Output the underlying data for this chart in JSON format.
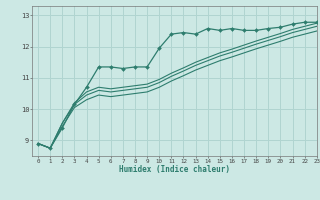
{
  "title": "",
  "xlabel": "Humidex (Indice chaleur)",
  "xlim": [
    -0.5,
    23
  ],
  "ylim": [
    8.5,
    13.3
  ],
  "yticks": [
    9,
    10,
    11,
    12,
    13
  ],
  "xticks": [
    0,
    1,
    2,
    3,
    4,
    5,
    6,
    7,
    8,
    9,
    10,
    11,
    12,
    13,
    14,
    15,
    16,
    17,
    18,
    19,
    20,
    21,
    22,
    23
  ],
  "bg_color": "#cce8e4",
  "grid_color": "#b0d4d0",
  "line_color": "#2e7d6e",
  "line1_y": [
    8.9,
    8.75,
    9.4,
    10.15,
    10.7,
    11.35,
    11.35,
    11.3,
    11.35,
    11.35,
    11.95,
    12.4,
    12.45,
    12.4,
    12.58,
    12.52,
    12.58,
    12.52,
    12.52,
    12.58,
    12.62,
    12.72,
    12.78,
    12.78
  ],
  "line2_y": [
    8.9,
    8.75,
    9.55,
    10.2,
    10.55,
    10.7,
    10.65,
    10.7,
    10.75,
    10.8,
    10.95,
    11.15,
    11.32,
    11.5,
    11.65,
    11.8,
    11.92,
    12.05,
    12.18,
    12.3,
    12.42,
    12.55,
    12.65,
    12.75
  ],
  "line3_y": [
    8.9,
    8.75,
    9.55,
    10.15,
    10.45,
    10.6,
    10.55,
    10.6,
    10.65,
    10.7,
    10.85,
    11.05,
    11.22,
    11.4,
    11.55,
    11.7,
    11.82,
    11.95,
    12.08,
    12.2,
    12.32,
    12.45,
    12.55,
    12.65
  ],
  "line4_y": [
    8.9,
    8.75,
    9.45,
    10.05,
    10.3,
    10.45,
    10.4,
    10.45,
    10.5,
    10.55,
    10.7,
    10.9,
    11.07,
    11.25,
    11.4,
    11.55,
    11.67,
    11.8,
    11.93,
    12.05,
    12.17,
    12.3,
    12.4,
    12.5
  ]
}
